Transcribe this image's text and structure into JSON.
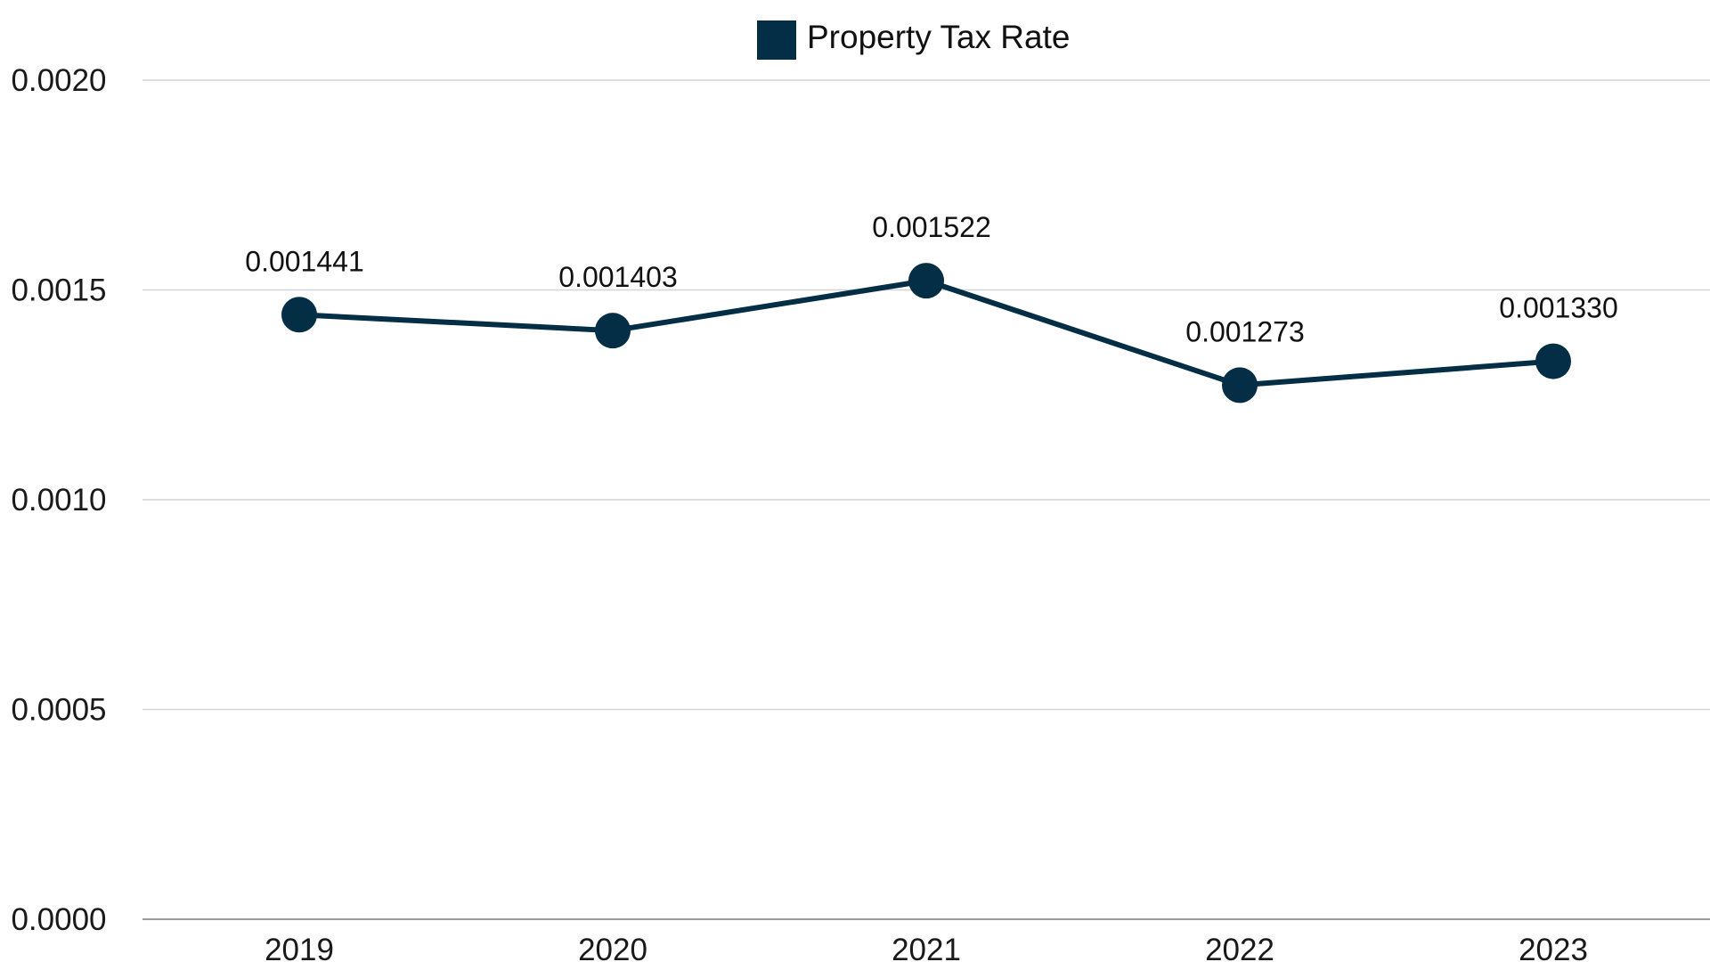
{
  "chart_data": {
    "type": "line",
    "categories": [
      "2019",
      "2020",
      "2021",
      "2022",
      "2023"
    ],
    "series": [
      {
        "name": "Property Tax Rate",
        "values": [
          0.001441,
          0.001403,
          0.001522,
          0.001273,
          0.00133
        ],
        "data_labels": [
          "0.001441",
          "0.001403",
          "0.001522",
          "0.001273",
          "0.001330"
        ],
        "color": "#032e45"
      }
    ],
    "y_ticks": [
      "0.0000",
      "0.0005",
      "0.0010",
      "0.0015",
      "0.0020"
    ],
    "ylim": [
      0,
      0.002
    ],
    "grid": true,
    "legend_position": "top-center",
    "title": "",
    "xlabel": "",
    "ylabel": ""
  }
}
